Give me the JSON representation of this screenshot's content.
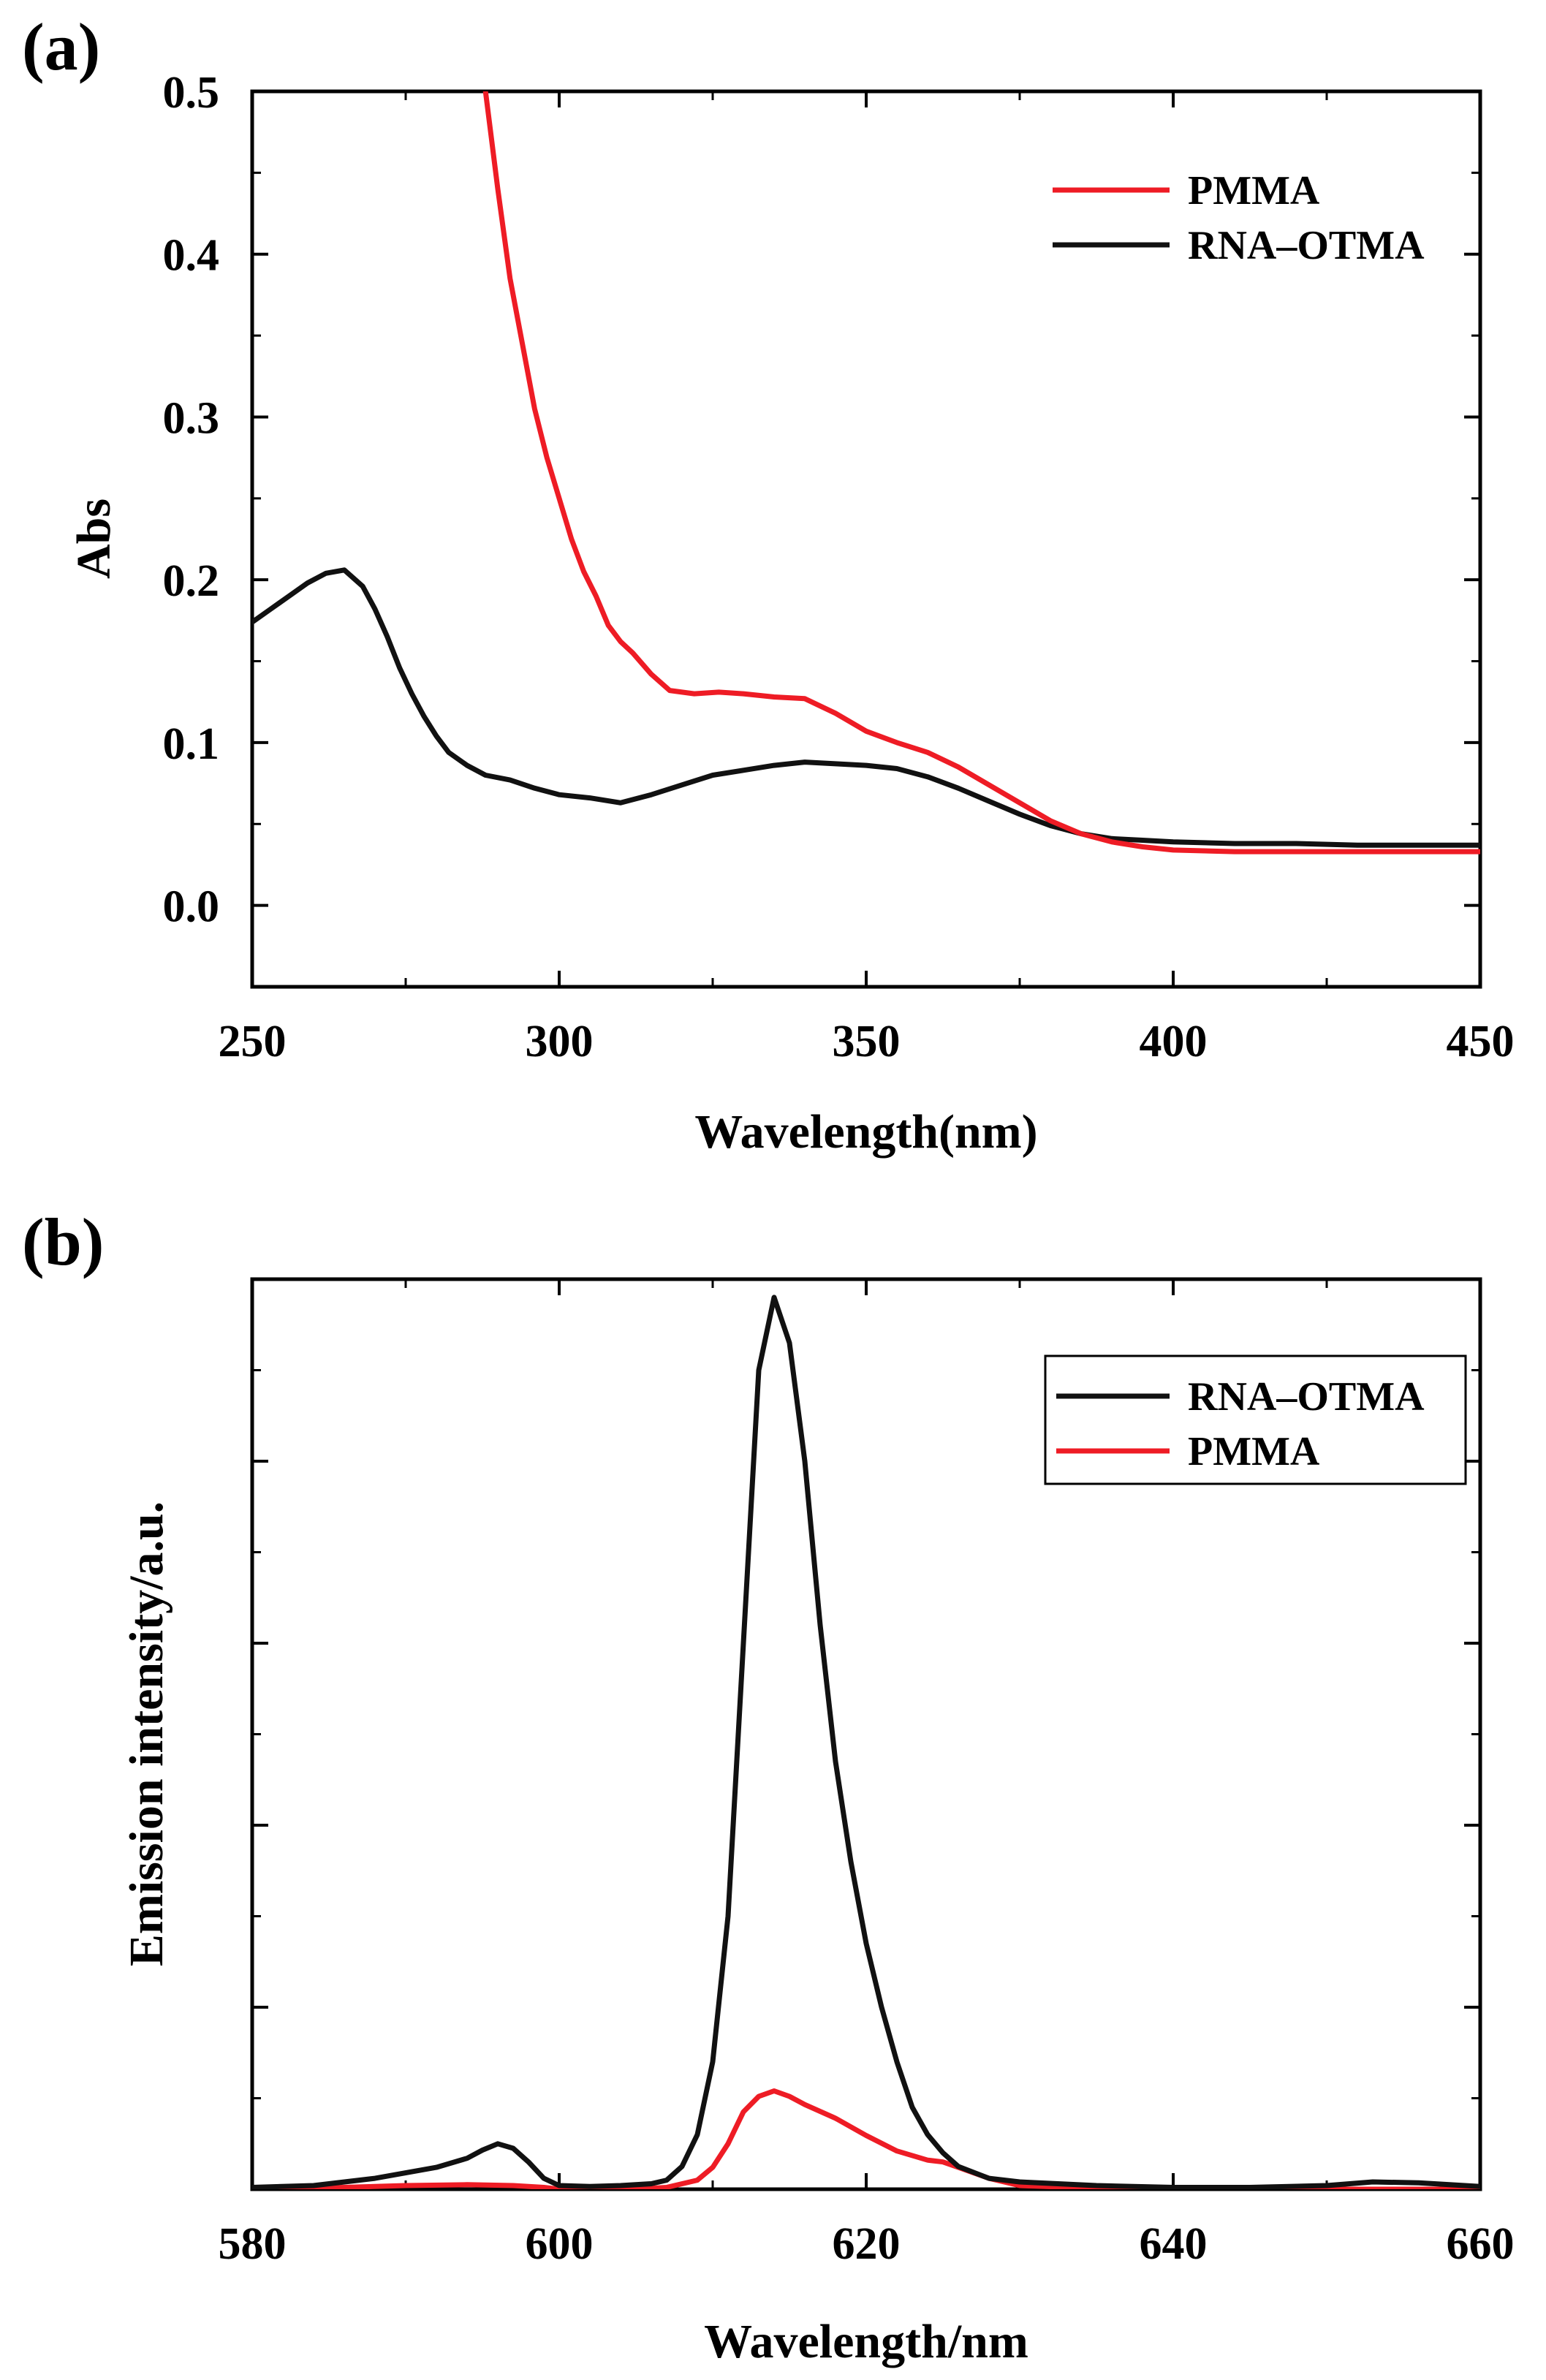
{
  "chart_data": [
    {
      "panel": "(a)",
      "type": "line",
      "xlabel": "Wavelength(nm)",
      "ylabel": "Abs",
      "xlim": [
        250,
        450
      ],
      "ylim": [
        -0.05,
        0.5
      ],
      "xticks": [
        250,
        300,
        350,
        400,
        450
      ],
      "xtick_labels": [
        "250",
        "300",
        "350",
        "400",
        "450"
      ],
      "yticks": [
        0.0,
        0.1,
        0.2,
        0.3,
        0.4,
        0.5
      ],
      "ytick_labels": [
        "0.0",
        "0.1",
        "0.2",
        "0.3",
        "0.4",
        "0.5"
      ],
      "legend_position": "top-right",
      "legend_frame": false,
      "series": [
        {
          "name": "PMMA",
          "color": "#ee1c25",
          "x": [
            288,
            290,
            292,
            294,
            296,
            298,
            300,
            302,
            304,
            306,
            308,
            310,
            312,
            315,
            318,
            322,
            326,
            330,
            335,
            340,
            345,
            350,
            355,
            360,
            365,
            370,
            375,
            380,
            385,
            390,
            395,
            400,
            410,
            420,
            430,
            440,
            450
          ],
          "y": [
            0.5,
            0.44,
            0.385,
            0.345,
            0.305,
            0.275,
            0.25,
            0.225,
            0.205,
            0.19,
            0.172,
            0.162,
            0.155,
            0.142,
            0.132,
            0.13,
            0.131,
            0.13,
            0.128,
            0.127,
            0.118,
            0.107,
            0.1,
            0.094,
            0.085,
            0.074,
            0.063,
            0.052,
            0.044,
            0.039,
            0.036,
            0.034,
            0.033,
            0.033,
            0.033,
            0.033,
            0.033
          ]
        },
        {
          "name": "RNA–OTMA",
          "color": "#111111",
          "x": [
            250,
            253,
            256,
            259,
            262,
            265,
            268,
            270,
            272,
            274,
            276,
            278,
            280,
            282,
            285,
            288,
            292,
            296,
            300,
            305,
            310,
            315,
            320,
            325,
            330,
            335,
            340,
            345,
            350,
            355,
            360,
            365,
            370,
            375,
            380,
            385,
            390,
            395,
            400,
            410,
            420,
            430,
            440,
            450
          ],
          "y": [
            0.174,
            0.182,
            0.19,
            0.198,
            0.204,
            0.206,
            0.196,
            0.182,
            0.165,
            0.146,
            0.13,
            0.116,
            0.104,
            0.094,
            0.086,
            0.08,
            0.077,
            0.072,
            0.068,
            0.066,
            0.063,
            0.068,
            0.074,
            0.08,
            0.083,
            0.086,
            0.088,
            0.087,
            0.086,
            0.084,
            0.079,
            0.072,
            0.064,
            0.056,
            0.049,
            0.044,
            0.041,
            0.04,
            0.039,
            0.038,
            0.038,
            0.037,
            0.037,
            0.037
          ]
        }
      ]
    },
    {
      "panel": "(b)",
      "type": "line",
      "xlabel": "Wavelength/nm",
      "ylabel": "Emission intensity/a.u.",
      "xlim": [
        580,
        660
      ],
      "ylim": [
        0,
        1.0
      ],
      "xticks": [
        580,
        600,
        620,
        640,
        660
      ],
      "xtick_labels": [
        "580",
        "600",
        "620",
        "640",
        "660"
      ],
      "yticks": [
        0.2,
        0.4,
        0.6,
        0.8
      ],
      "ytick_labels": [],
      "legend_position": "top-right",
      "legend_frame": true,
      "series": [
        {
          "name": "RNA–OTMA",
          "color": "#111111",
          "x": [
            580,
            584,
            588,
            590,
            592,
            594,
            595,
            596,
            597,
            598,
            599,
            600,
            602,
            604,
            606,
            607,
            608,
            609,
            610,
            611,
            612,
            613,
            614,
            615,
            616,
            617,
            618,
            619,
            620,
            621,
            622,
            623,
            624,
            625,
            626,
            628,
            630,
            635,
            640,
            645,
            650,
            653,
            656,
            658,
            660
          ],
          "y": [
            0.002,
            0.004,
            0.012,
            0.018,
            0.024,
            0.034,
            0.043,
            0.05,
            0.045,
            0.03,
            0.012,
            0.004,
            0.003,
            0.004,
            0.006,
            0.01,
            0.025,
            0.06,
            0.14,
            0.3,
            0.6,
            0.9,
            0.98,
            0.93,
            0.8,
            0.62,
            0.47,
            0.36,
            0.27,
            0.2,
            0.14,
            0.09,
            0.06,
            0.04,
            0.025,
            0.012,
            0.008,
            0.004,
            0.002,
            0.002,
            0.004,
            0.008,
            0.007,
            0.005,
            0.003
          ]
        },
        {
          "name": "PMMA",
          "color": "#ee1c25",
          "x": [
            580,
            586,
            590,
            594,
            597,
            599,
            600,
            605,
            607,
            609,
            610,
            611,
            612,
            613,
            614,
            615,
            616,
            618,
            620,
            622,
            624,
            625,
            626,
            628,
            630,
            635,
            640,
            650,
            660
          ],
          "y": [
            0.0,
            0.002,
            0.004,
            0.005,
            0.004,
            0.002,
            0.0,
            0.0,
            0.002,
            0.01,
            0.024,
            0.05,
            0.085,
            0.102,
            0.108,
            0.102,
            0.093,
            0.078,
            0.059,
            0.042,
            0.032,
            0.03,
            0.024,
            0.012,
            0.004,
            0.001,
            0.0,
            0.0,
            0.0
          ]
        }
      ]
    }
  ]
}
